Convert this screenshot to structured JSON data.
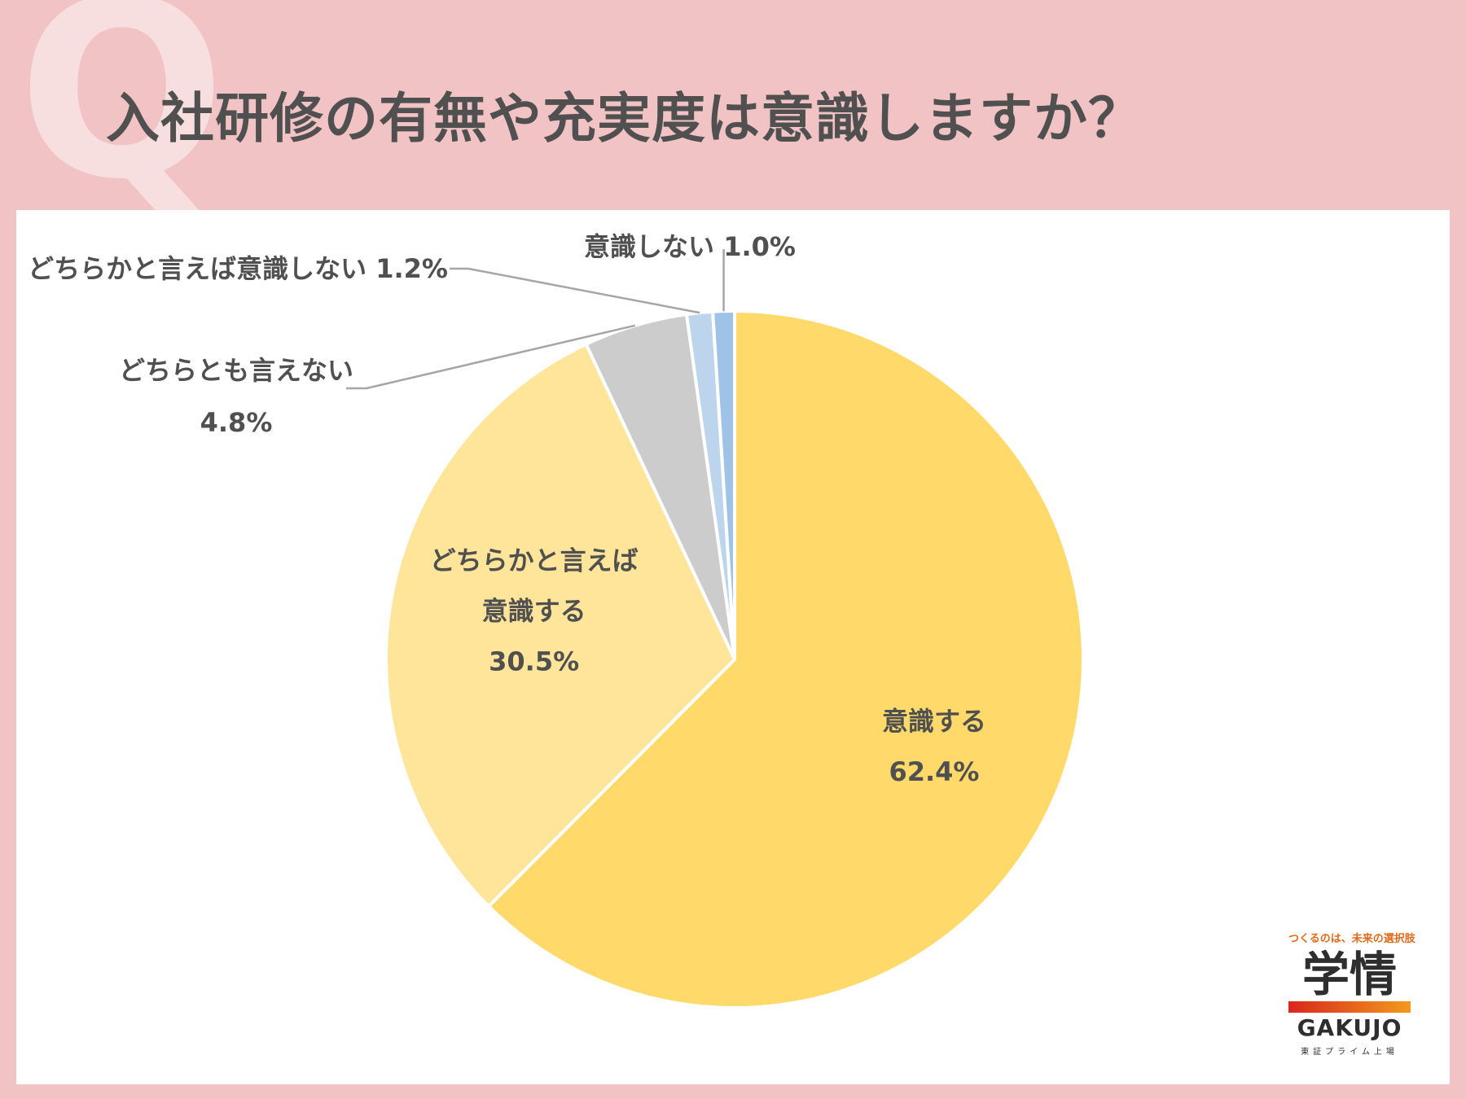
{
  "header": {
    "q_mark": "Q",
    "title": "入社研修の有無や充実度は意識しますか？"
  },
  "chart_data": {
    "type": "pie",
    "slices": [
      {
        "label": "意識する",
        "value": 62.4,
        "value_label": "62.4%",
        "color": "#ffd96a"
      },
      {
        "label": "どちらかと言えば意識する",
        "label_lines": [
          "どちらかと言えば",
          "意識する"
        ],
        "value": 30.5,
        "value_label": "30.5%",
        "color": "#ffe59a"
      },
      {
        "label": "どちらとも言えない",
        "value": 4.8,
        "value_label": "4.8%",
        "color": "#cccccc"
      },
      {
        "label": "どちらかと言えば意識しない",
        "value": 1.2,
        "value_label": "1.2%",
        "color": "#bcd4ec"
      },
      {
        "label": "意識しない",
        "value": 1.0,
        "value_label": "1.0%",
        "color": "#9fc3e6"
      }
    ]
  },
  "logo": {
    "tagline": "つくるのは、未来の選択肢",
    "name_kanji": "学情",
    "name_en": "GAKUJO",
    "listing": "東証プライム上場"
  }
}
